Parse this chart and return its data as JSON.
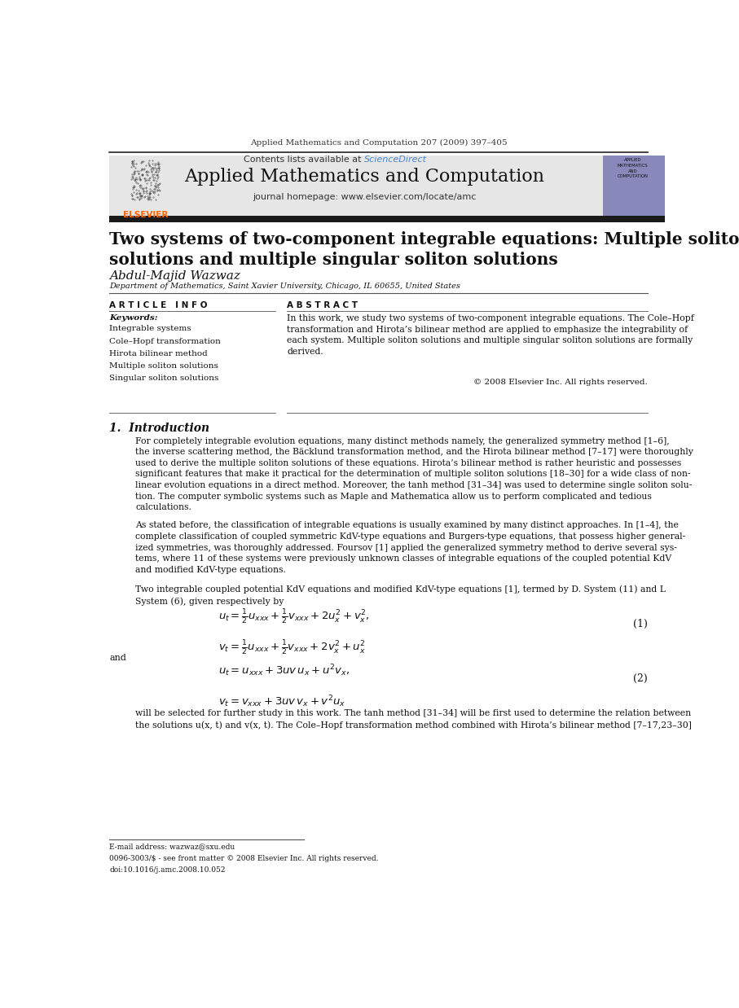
{
  "page_width": 9.07,
  "page_height": 12.38,
  "bg_color": "#ffffff",
  "journal_line": "Applied Mathematics and Computation 207 (2009) 397–405",
  "journal_name": "Applied Mathematics and Computation",
  "journal_homepage": "journal homepage: www.elsevier.com/locate/amc",
  "contents_line": "Contents lists available at ",
  "science_direct": "ScienceDirect",
  "science_direct_color": "#4a86c8",
  "paper_title": "Two systems of two-component integrable equations: Multiple soliton\nsolutions and multiple singular soliton solutions",
  "author_name": "Abdul-Majid Wazwaz",
  "affiliation": "Department of Mathematics, Saint Xavier University, Chicago, IL 60655, United States",
  "article_info_header": "A R T I C L E   I N F O",
  "abstract_header": "A B S T R A C T",
  "keywords_label": "Keywords:",
  "keywords": [
    "Integrable systems",
    "Cole–Hopf transformation",
    "Hirota bilinear method",
    "Multiple soliton solutions",
    "Singular soliton solutions"
  ],
  "abstract_text": "In this work, we study two systems of two-component integrable equations. The Cole–Hopf\ntransformation and Hirota’s bilinear method are applied to emphasize the integrability of\neach system. Multiple soliton solutions and multiple singular soliton solutions are formally\nderived.",
  "copyright": "© 2008 Elsevier Inc. All rights reserved.",
  "section1_header": "1.  Introduction",
  "intro_para1": "For completely integrable evolution equations, many distinct methods namely, the generalized symmetry method [1–6],\nthe inverse scattering method, the Bäcklund transformation method, and the Hirota bilinear method [7–17] were thoroughly\nused to derive the multiple soliton solutions of these equations. Hirota’s bilinear method is rather heuristic and possesses\nsignificant features that make it practical for the determination of multiple soliton solutions [18–30] for a wide class of non-\nlinear evolution equations in a direct method. Moreover, the tanh method [31–34] was used to determine single soliton solu-\ntion. The computer symbolic systems such as Maple and Mathematica allow us to perform complicated and tedious\ncalculations.",
  "intro_para2": "As stated before, the classification of integrable equations is usually examined by many distinct approaches. In [1–4], the\ncomplete classification of coupled symmetric KdV-type equations and Burgers-type equations, that possess higher general-\nized symmetries, was thoroughly addressed. Foursov [1] applied the generalized symmetry method to derive several sys-\ntems, where 11 of these systems were previously unknown classes of integrable equations of the coupled potential KdV\nand modified KdV-type equations.",
  "intro_para3": "Two integrable coupled potential KdV equations and modified KdV-type equations [1], termed by D. System (11) and L\nSystem (6), given respectively by",
  "eq1_label": "(1)",
  "eq2_label": "(2)",
  "and_text": "and",
  "will_be_text": "will be selected for further study in this work. The tanh method [31–34] will be first used to determine the relation between\nthe solutions u(x, t) and v(x, t). The Cole–Hopf transformation method combined with Hirota’s bilinear method [7–17,23–30]",
  "footer_email": "E-mail address: wazwaz@sxu.edu",
  "footer_issn": "0096-3003/$ - see front matter © 2008 Elsevier Inc. All rights reserved.",
  "footer_doi": "doi:10.1016/j.amc.2008.10.052",
  "elsevier_color": "#ff6600",
  "link_color": "#4a86c8"
}
